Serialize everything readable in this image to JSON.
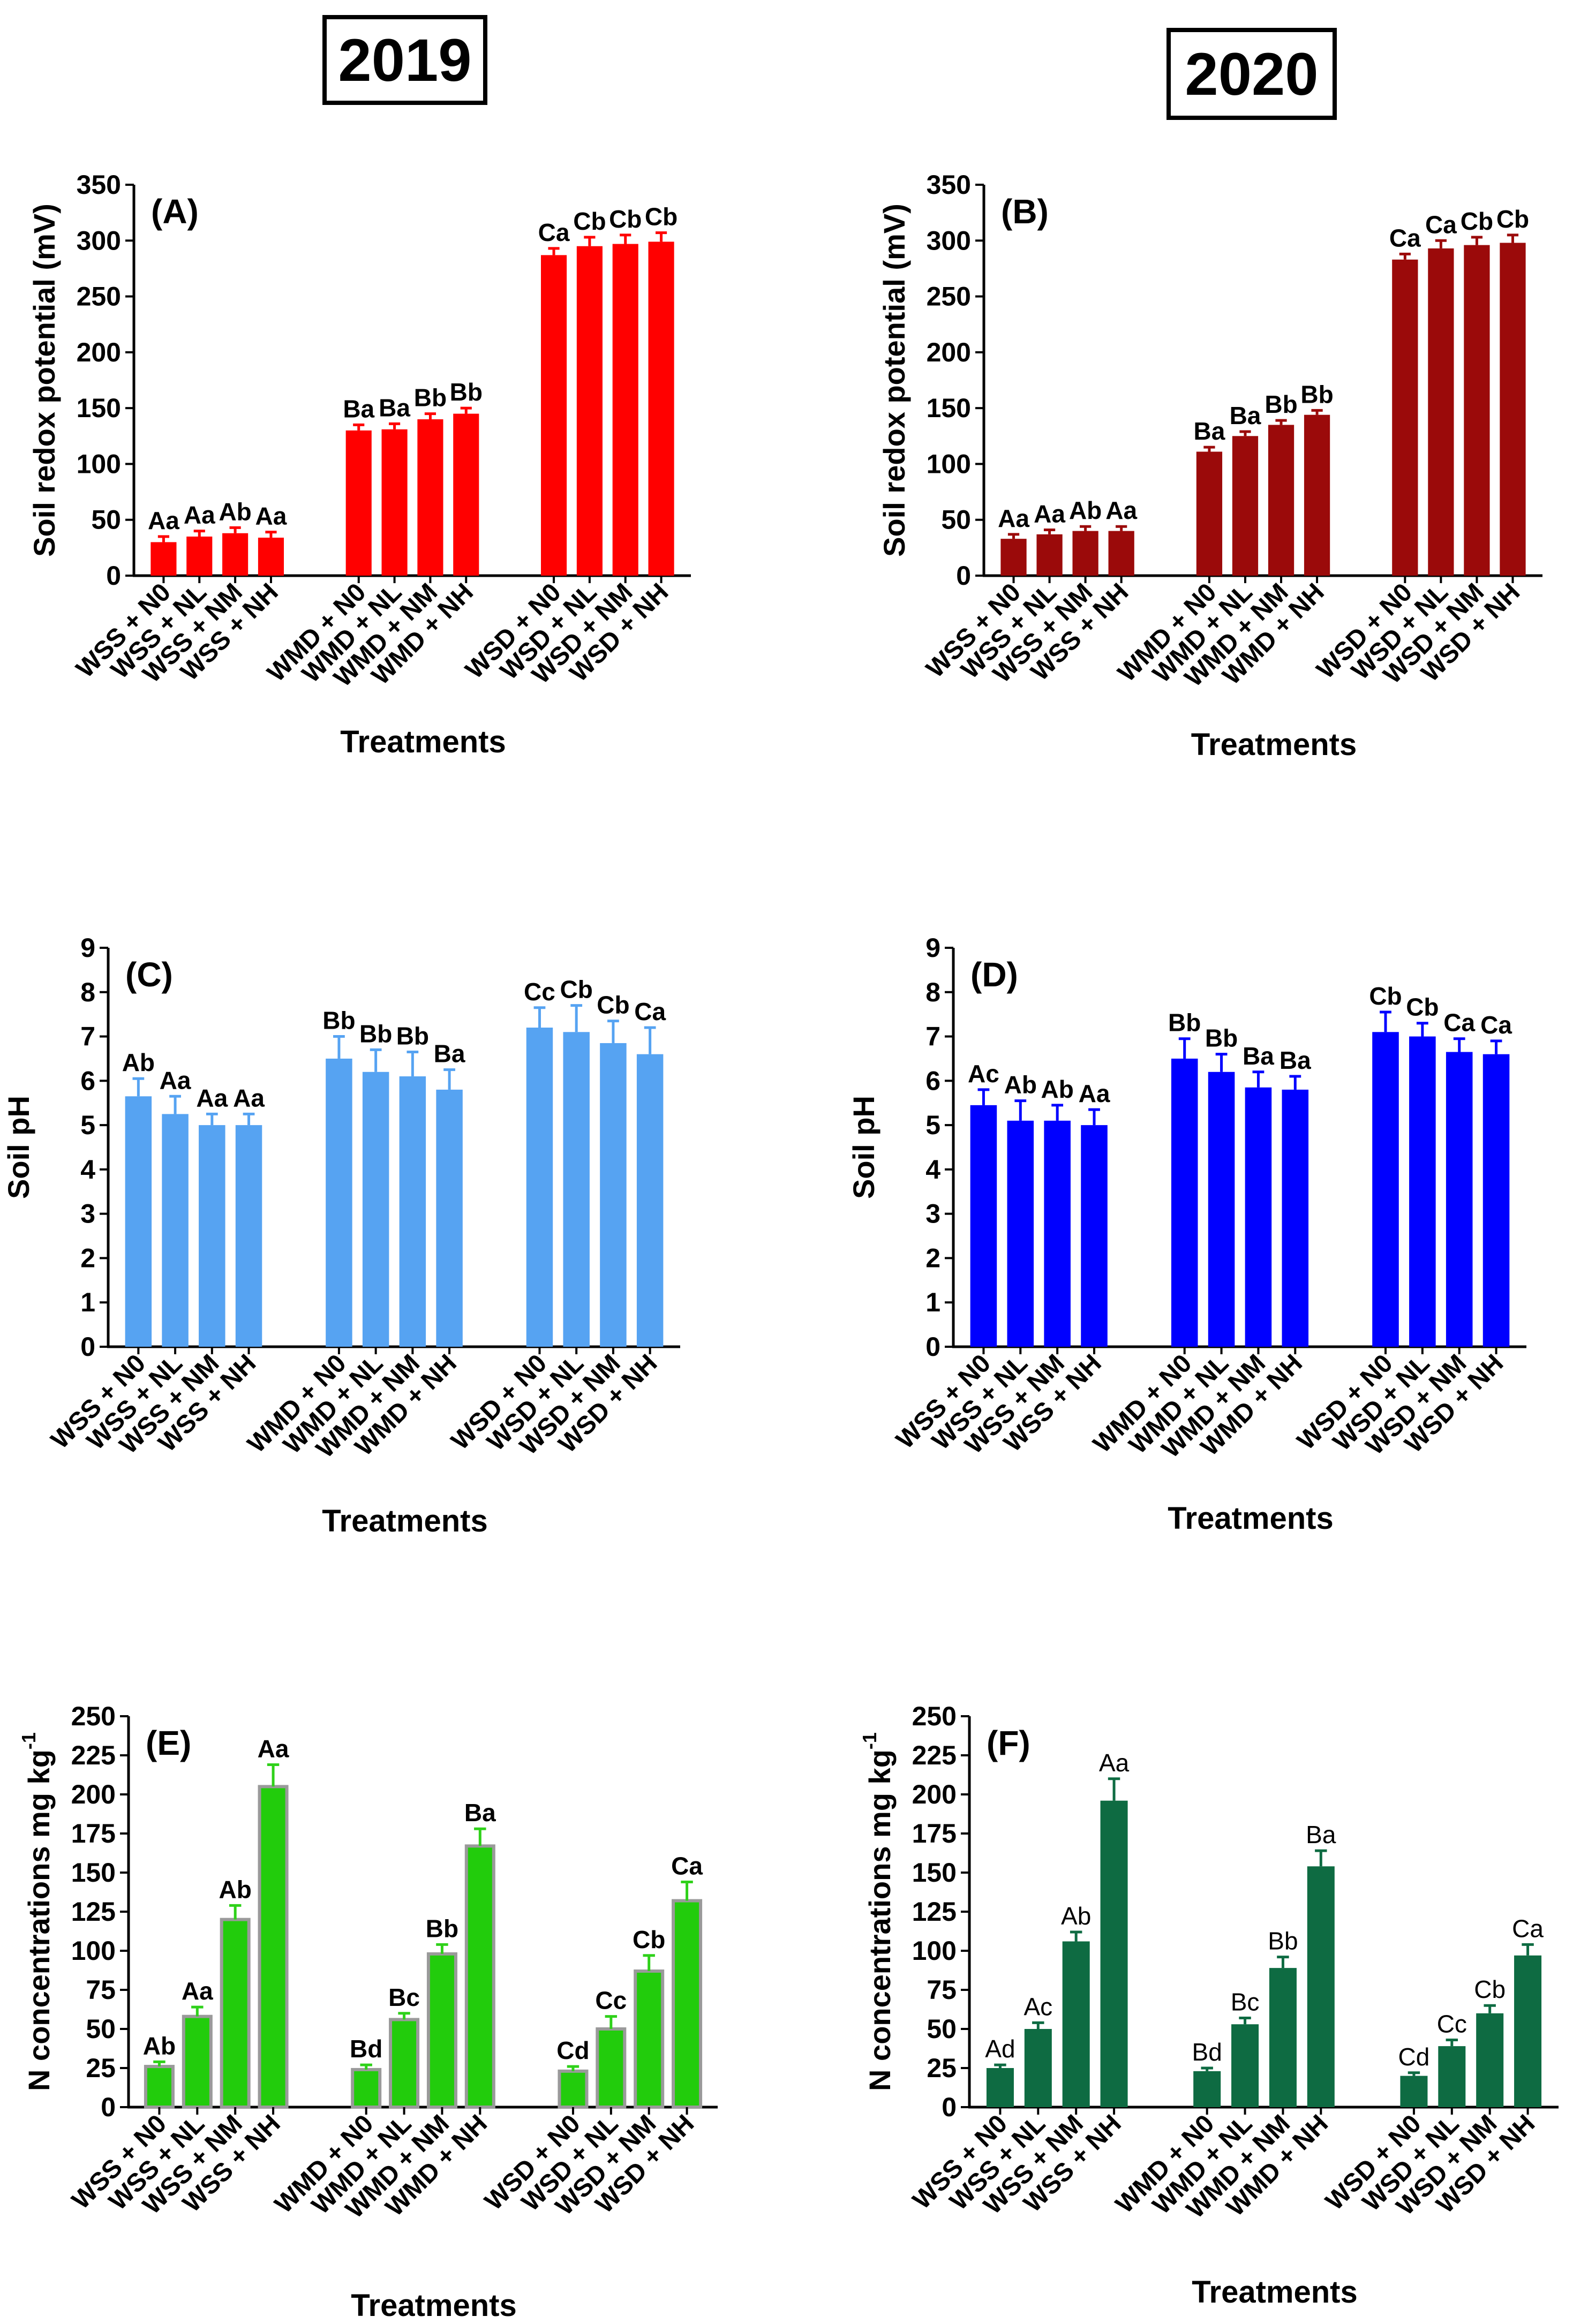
{
  "years": [
    "2019",
    "2020"
  ],
  "shared": {
    "xlabel": "Treatments",
    "categories": [
      "WSS + N0",
      "WSS + NL",
      "WSS + NM",
      "WSS + NH",
      "WMD + N0",
      "WMD + NL",
      "WMD + NM",
      "WMD + NH",
      "WSD + N0",
      "WSD + NL",
      "WSD + NM",
      "WSD + NH"
    ]
  },
  "chart_data": [
    {
      "id": "A",
      "type": "bar",
      "panel_label": "(A)",
      "year": "2019",
      "ylabel": "Soil redox potential (mV)",
      "xlabel": "Treatments",
      "ylim": [
        0,
        350
      ],
      "ytick_step": 50,
      "ytick_decimals": 0,
      "color": "#ff0000",
      "border": "#ff0000",
      "label_bold": true,
      "values": [
        30,
        35,
        38,
        34,
        130,
        131,
        140,
        145,
        287,
        295,
        297,
        299
      ],
      "errors": [
        5,
        5,
        5,
        5,
        5,
        5,
        5,
        5,
        6,
        8,
        8,
        8
      ],
      "letters": [
        "Aa",
        "Aa",
        "Ab",
        "Aa",
        "Ba",
        "Ba",
        "Bb",
        "Bb",
        "Ca",
        "Cb",
        "Cb",
        "Cb"
      ]
    },
    {
      "id": "B",
      "type": "bar",
      "panel_label": "(B)",
      "year": "2020",
      "ylabel": "Soil redox potential (mV)",
      "xlabel": "Treatments",
      "ylim": [
        0,
        350
      ],
      "ytick_step": 50,
      "ytick_decimals": 0,
      "color": "#9b0a0a",
      "border": "#9b0a0a",
      "label_bold": true,
      "values": [
        33,
        37,
        40,
        40,
        111,
        125,
        135,
        144,
        283,
        293,
        296,
        298
      ],
      "errors": [
        4,
        4,
        4,
        4,
        4,
        4,
        4,
        4,
        5,
        7,
        7,
        7
      ],
      "letters": [
        "Aa",
        "Aa",
        "Ab",
        "Aa",
        "Ba",
        "Ba",
        "Bb",
        "Bb",
        "Ca",
        "Ca",
        "Cb",
        "Cb"
      ]
    },
    {
      "id": "C",
      "type": "bar",
      "panel_label": "(C)",
      "year": "2019",
      "ylabel": "Soil pH",
      "xlabel": "Treatments",
      "ylim": [
        0,
        9
      ],
      "ytick_step": 1,
      "ytick_decimals": 0,
      "color": "#56a3f2",
      "border": "#56a3f2",
      "label_bold": true,
      "values": [
        5.65,
        5.25,
        5.0,
        5.0,
        6.5,
        6.2,
        6.1,
        5.8,
        7.2,
        7.1,
        6.85,
        6.6
      ],
      "errors": [
        0.4,
        0.4,
        0.25,
        0.25,
        0.5,
        0.5,
        0.55,
        0.45,
        0.45,
        0.6,
        0.5,
        0.6
      ],
      "letters": [
        "Ab",
        "Aa",
        "Aa",
        "Aa",
        "Bb",
        "Bb",
        "Bb",
        "Ba",
        "Cc",
        "Cb",
        "Cb",
        "Ca"
      ]
    },
    {
      "id": "D",
      "type": "bar",
      "panel_label": "(D)",
      "year": "2020",
      "ylabel": "Soil pH",
      "xlabel": "Treatments",
      "ylim": [
        0,
        9
      ],
      "ytick_step": 1,
      "ytick_decimals": 0,
      "color": "#0000ff",
      "border": "#0000ff",
      "label_bold": true,
      "values": [
        5.45,
        5.1,
        5.1,
        5.0,
        6.5,
        6.2,
        5.85,
        5.8,
        7.1,
        7.0,
        6.65,
        6.6
      ],
      "errors": [
        0.35,
        0.45,
        0.35,
        0.35,
        0.45,
        0.4,
        0.35,
        0.3,
        0.45,
        0.3,
        0.3,
        0.3
      ],
      "letters": [
        "Ac",
        "Ab",
        "Ab",
        "Aa",
        "Bb",
        "Bb",
        "Ba",
        "Ba",
        "Cb",
        "Cb",
        "Ca",
        "Ca"
      ]
    },
    {
      "id": "E",
      "type": "bar",
      "panel_label": "(E)",
      "year": "2019",
      "ylabel": "N concentrations mg kg-1",
      "xlabel": "Treatments",
      "ylim": [
        0,
        250
      ],
      "ytick_step": 25,
      "ytick_decimals": 0,
      "color": "#22cc0c",
      "border": "#9a9a9a",
      "label_bold": true,
      "values": [
        26,
        58,
        120,
        205,
        24,
        56,
        98,
        167,
        23,
        50,
        87,
        132
      ],
      "errors": [
        3,
        6,
        9,
        14,
        3,
        4,
        6,
        11,
        3,
        8,
        10,
        12
      ],
      "letters": [
        "Ab",
        "Aa",
        "Ab",
        "Aa",
        "Bd",
        "Bc",
        "Bb",
        "Ba",
        "Cd",
        "Cc",
        "Cb",
        "Ca"
      ]
    },
    {
      "id": "F",
      "type": "bar",
      "panel_label": "(F)",
      "year": "2020",
      "ylabel": "N concentrations mg kg-1",
      "xlabel": "Treatments",
      "ylim": [
        0,
        250
      ],
      "ytick_step": 25,
      "ytick_decimals": 0,
      "color": "#0e6b42",
      "border": "#0e6b42",
      "label_bold": false,
      "values": [
        25,
        50,
        106,
        196,
        23,
        53,
        89,
        154,
        20,
        39,
        60,
        97
      ],
      "errors": [
        2,
        4,
        6,
        14,
        2,
        4,
        7,
        10,
        2,
        4,
        5,
        7
      ],
      "letters": [
        "Ad",
        "Ac",
        "Ab",
        "Aa",
        "Bd",
        "Bc",
        "Bb",
        "Ba",
        "Cd",
        "Cc",
        "Cb",
        "Ca"
      ]
    }
  ]
}
